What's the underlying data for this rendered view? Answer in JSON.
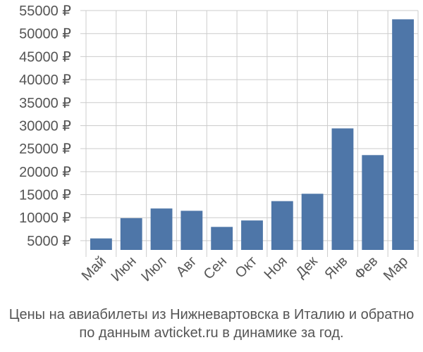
{
  "chart_data": {
    "type": "bar",
    "categories": [
      "Май",
      "Июн",
      "Июл",
      "Авг",
      "Сен",
      "Окт",
      "Ноя",
      "Дек",
      "Янв",
      "Фев",
      "Мар"
    ],
    "values": [
      5500,
      9900,
      12000,
      11500,
      8000,
      9400,
      13600,
      15200,
      29400,
      23600,
      53100
    ],
    "y_ticks": [
      5000,
      10000,
      15000,
      20000,
      25000,
      30000,
      35000,
      40000,
      45000,
      50000,
      55000
    ],
    "y_tick_labels": [
      "5000 ₽",
      "10000 ₽",
      "15000 ₽",
      "20000 ₽",
      "25000 ₽",
      "30000 ₽",
      "35000 ₽",
      "40000 ₽",
      "45000 ₽",
      "50000 ₽",
      "55000 ₽"
    ],
    "ylim": [
      3000,
      55000
    ],
    "grid": true,
    "bar_color": "#4e76a8",
    "grid_color": "#cccccc",
    "caption_line1": "Цены на авиабилеты из Нижневартовска в Италию и обратно",
    "caption_line2": "по данным avticket.ru в динамике за год."
  }
}
